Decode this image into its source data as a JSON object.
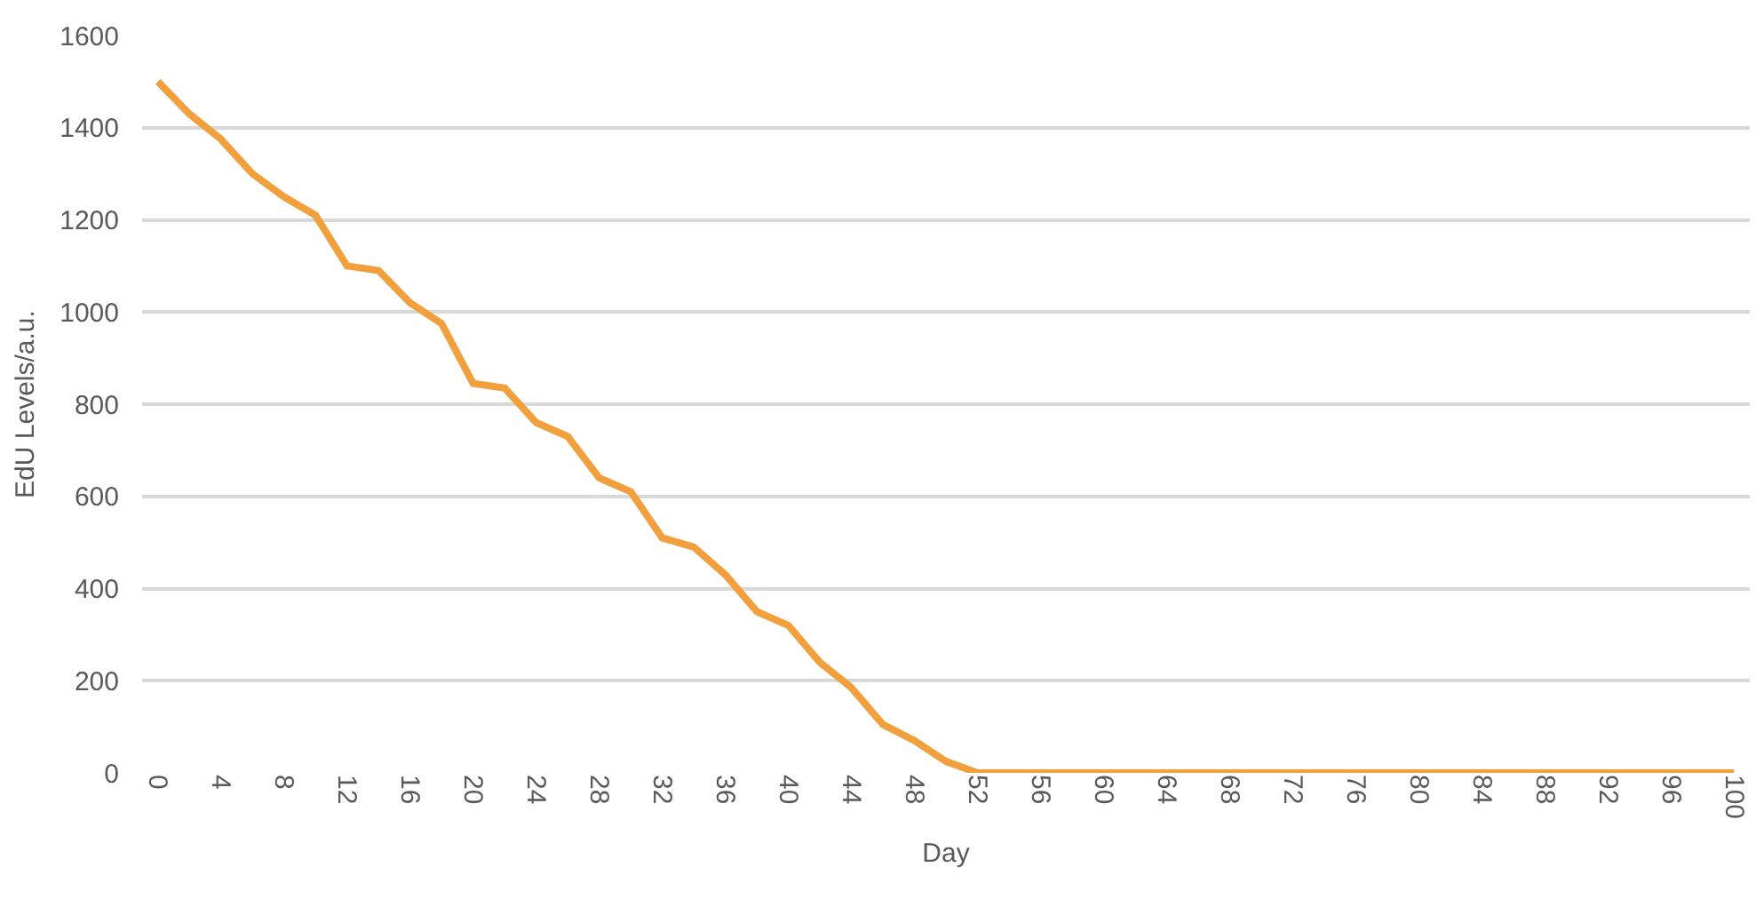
{
  "chart_data": {
    "type": "line",
    "xlabel": "Day",
    "ylabel": "EdU Levels/a.u.",
    "x": [
      0,
      2,
      4,
      6,
      8,
      10,
      12,
      14,
      16,
      18,
      20,
      22,
      24,
      26,
      28,
      30,
      32,
      34,
      36,
      38,
      40,
      42,
      44,
      46,
      48,
      50,
      52,
      54,
      56,
      58,
      60,
      62,
      64,
      66,
      68,
      70,
      72,
      74,
      76,
      78,
      80,
      82,
      84,
      86,
      88,
      90,
      92,
      94,
      96,
      98,
      100
    ],
    "series": [
      {
        "color": "#f2a03d",
        "values": [
          1500,
          1430,
          1375,
          1300,
          1250,
          1210,
          1100,
          1090,
          1020,
          975,
          845,
          835,
          760,
          730,
          640,
          610,
          510,
          490,
          430,
          350,
          320,
          240,
          185,
          105,
          70,
          25,
          0,
          0,
          0,
          0,
          0,
          0,
          0,
          0,
          0,
          0,
          0,
          0,
          0,
          0,
          0,
          0,
          0,
          0,
          0,
          0,
          0,
          0,
          0,
          0,
          0
        ]
      }
    ],
    "xlim": [
      -1,
      101
    ],
    "xticks": [
      0,
      4,
      8,
      12,
      16,
      20,
      24,
      28,
      32,
      36,
      40,
      44,
      48,
      52,
      56,
      60,
      64,
      68,
      72,
      76,
      80,
      84,
      88,
      92,
      96,
      100
    ],
    "ylim": [
      0,
      1600
    ],
    "yticks": [
      0,
      200,
      400,
      600,
      800,
      1000,
      1200,
      1400,
      1600
    ],
    "grid": "y",
    "marker": "none",
    "line_style": "solid"
  }
}
